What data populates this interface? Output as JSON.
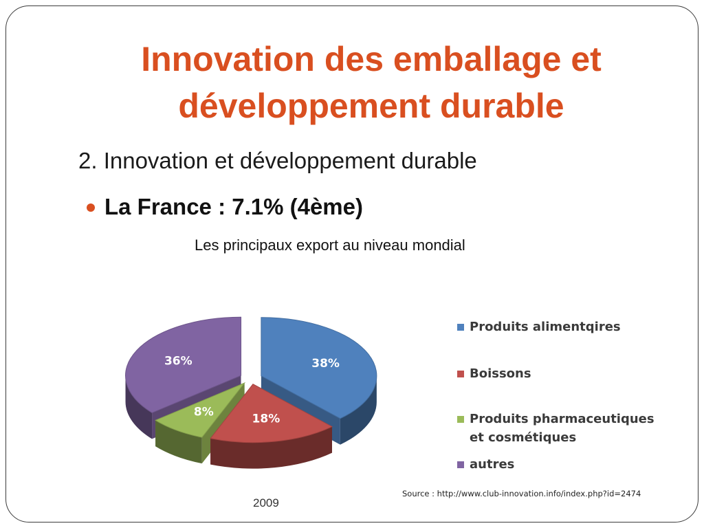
{
  "slide": {
    "title": "Innovation des emballage et développement durable",
    "subtitle": "2. Innovation et développement durable",
    "bullet": "La France : 7.1% (4ème)",
    "chart_caption": "Les principaux export au niveau mondial",
    "source": "Source : http://www.club-innovation.info/index.php?id=2474",
    "year": "2009",
    "accent_color": "#d94f20"
  },
  "chart_data": {
    "type": "pie",
    "categories": [
      "Produits alimentqires",
      "Boissons",
      "Produits pharmaceutiques\net cosmétiques",
      "autres"
    ],
    "values": [
      38,
      18,
      8,
      36
    ],
    "labels": [
      "38%",
      "18%",
      "8%",
      "36%"
    ],
    "colors": [
      "#4f81bd",
      "#c0504d",
      "#9bbb59",
      "#8064a2"
    ],
    "legend_position": "right",
    "exploded": true,
    "three_d": true
  }
}
